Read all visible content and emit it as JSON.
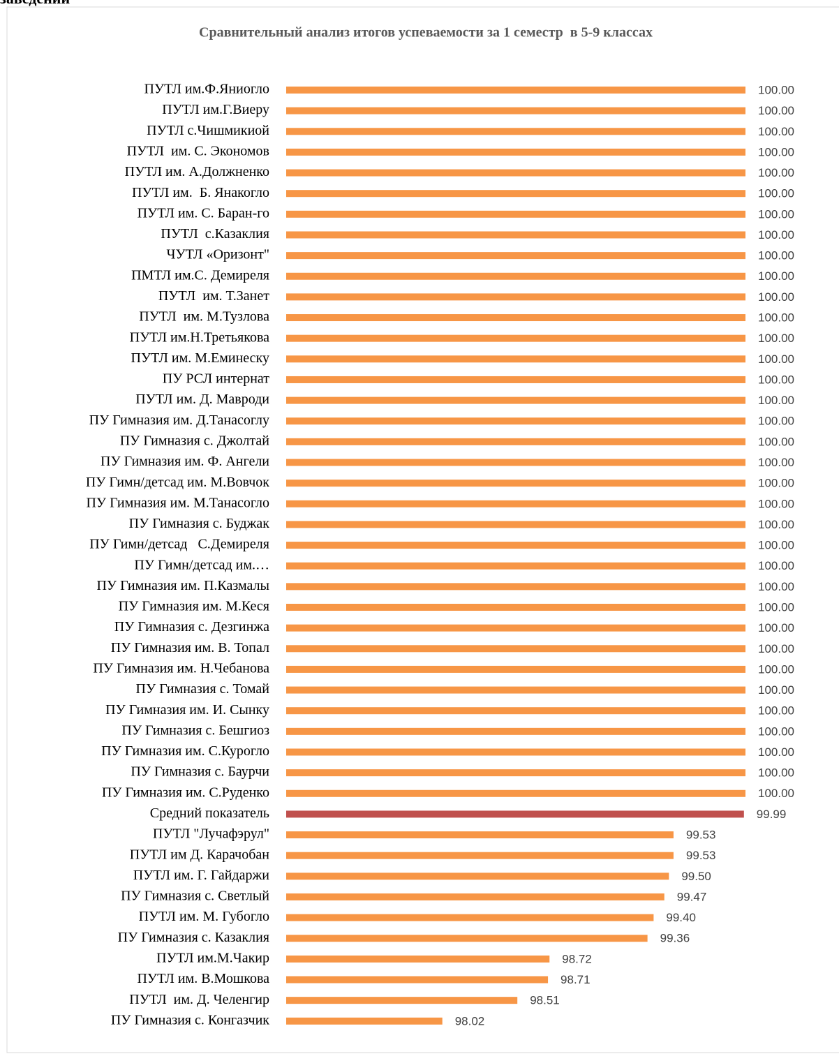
{
  "heading": "заведений",
  "chart_data": {
    "type": "barh",
    "title": "Сравнительный анализ итогов успеваемости за 1 семестр  в 5-9 классах",
    "categories": [
      "ПУТЛ им.Ф.Яниогло",
      "ПУТЛ им.Г.Виеру",
      "ПУТЛ с.Чишмикиой",
      "ПУТЛ  им. С. Экономов",
      "ПУТЛ им. А.Должненко",
      "ПУТЛ им.  Б. Янакогло",
      "ПУТЛ им. С. Баран-го",
      "ПУТЛ  с.Казаклия",
      "ЧУТЛ «Оризонт\"",
      "ПМТЛ им.С. Демиреля",
      "ПУТЛ  им. Т.Занет",
      "ПУТЛ  им. М.Тузлова",
      "ПУТЛ им.Н.Третьякова",
      "ПУТЛ им. М.Еминеску",
      "ПУ РСЛ интернат",
      "ПУТЛ им. Д. Мавроди",
      "ПУ Гимназия им. Д.Танасоглу",
      "ПУ Гимназия с. Джолтай",
      "ПУ Гимназия им. Ф. Ангели",
      "ПУ Гимн/детсад им. М.Вовчок",
      "ПУ Гимназия им. М.Танасогло",
      "ПУ Гимназия с. Буджак",
      "ПУ Гимн/детсад   С.Демиреля",
      "ПУ Гимн/детсад им.…",
      "ПУ Гимназия им. П.Казмалы",
      "ПУ Гимназия им. М.Кеся",
      "ПУ Гимназия с. Дезгинжа",
      "ПУ Гимназия им. В. Топал",
      "ПУ Гимназия им. Н.Чебанова",
      "ПУ Гимназия с. Томай",
      "ПУ Гимназия им. И. Сынку",
      "ПУ Гимназия с. Бешгиоз",
      "ПУ Гимназия им. С.Курогло",
      "ПУ Гимназия с. Баурчи",
      "ПУ Гимназия им. С.Руденко",
      "Средний показатель",
      "ПУТЛ \"Лучафэрул\"",
      "ПУТЛ им Д. Карачобан",
      "ПУТЛ им. Г. Гайдаржи",
      "ПУ Гимназия с. Светлый",
      "ПУТЛ им. М. Губогло",
      "ПУ Гимназия с. Казаклия",
      "ПУТЛ им.М.Чакир",
      "ПУТЛ им. В.Мошкова",
      "ПУТЛ  им. Д. Челенгир",
      "ПУ Гимназия с. Конгазчик"
    ],
    "values": [
      100,
      100,
      100,
      100,
      100,
      100,
      100,
      100,
      100,
      100,
      100,
      100,
      100,
      100,
      100,
      100,
      100,
      100,
      100,
      100,
      100,
      100,
      100,
      100,
      100,
      100,
      100,
      100,
      100,
      100,
      100,
      100,
      100,
      100,
      100,
      99.99,
      99.53,
      99.53,
      99.5,
      99.47,
      99.4,
      99.36,
      98.72,
      98.71,
      98.51,
      98.02
    ],
    "value_labels": [
      "100.00",
      "100.00",
      "100.00",
      "100.00",
      "100.00",
      "100.00",
      "100.00",
      "100.00",
      "100.00",
      "100.00",
      "100.00",
      "100.00",
      "100.00",
      "100.00",
      "100.00",
      "100.00",
      "100.00",
      "100.00",
      "100.00",
      "100.00",
      "100.00",
      "100.00",
      "100.00",
      "100.00",
      "100.00",
      "100.00",
      "100.00",
      "100.00",
      "100.00",
      "100.00",
      "100.00",
      "100.00",
      "100.00",
      "100.00",
      "100.00",
      "99.99",
      "99.53",
      "99.53",
      "99.50",
      "99.47",
      "99.40",
      "99.36",
      "98.72",
      "98.71",
      "98.51",
      "98.02"
    ],
    "colors": [
      "#f79646",
      "#f79646",
      "#f79646",
      "#f79646",
      "#f79646",
      "#f79646",
      "#f79646",
      "#f79646",
      "#f79646",
      "#f79646",
      "#f79646",
      "#f79646",
      "#f79646",
      "#f79646",
      "#f79646",
      "#f79646",
      "#f79646",
      "#f79646",
      "#f79646",
      "#f79646",
      "#f79646",
      "#f79646",
      "#f79646",
      "#f79646",
      "#f79646",
      "#f79646",
      "#f79646",
      "#f79646",
      "#f79646",
      "#f79646",
      "#f79646",
      "#f79646",
      "#f79646",
      "#f79646",
      "#f79646",
      "#c0504d",
      "#f79646",
      "#f79646",
      "#f79646",
      "#f79646",
      "#f79646",
      "#f79646",
      "#f79646",
      "#f79646",
      "#f79646",
      "#f79646"
    ],
    "xlim": [
      97,
      100
    ]
  }
}
